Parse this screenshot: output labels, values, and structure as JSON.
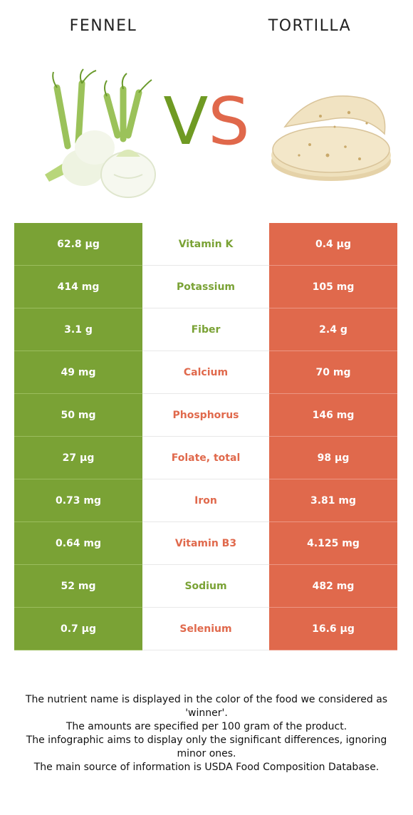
{
  "header": {
    "left_food": "FENNEL",
    "right_food": "TORTILLA",
    "vs_v": "V",
    "vs_s": "S"
  },
  "colors": {
    "left_winner": "#7aa235",
    "right_winner": "#e0694c"
  },
  "rows": [
    {
      "left": "62.8 µg",
      "nutrient": "Vitamin K",
      "right": "0.4 µg",
      "winner": "left"
    },
    {
      "left": "414 mg",
      "nutrient": "Potassium",
      "right": "105 mg",
      "winner": "left"
    },
    {
      "left": "3.1 g",
      "nutrient": "Fiber",
      "right": "2.4 g",
      "winner": "left"
    },
    {
      "left": "49 mg",
      "nutrient": "Calcium",
      "right": "70 mg",
      "winner": "right"
    },
    {
      "left": "50 mg",
      "nutrient": "Phosphorus",
      "right": "146 mg",
      "winner": "right"
    },
    {
      "left": "27 µg",
      "nutrient": "Folate, total",
      "right": "98 µg",
      "winner": "right"
    },
    {
      "left": "0.73 mg",
      "nutrient": "Iron",
      "right": "3.81 mg",
      "winner": "right"
    },
    {
      "left": "0.64 mg",
      "nutrient": "Vitamin B3",
      "right": "4.125 mg",
      "winner": "right"
    },
    {
      "left": "52 mg",
      "nutrient": "Sodium",
      "right": "482 mg",
      "winner": "left"
    },
    {
      "left": "0.7 µg",
      "nutrient": "Selenium",
      "right": "16.6 µg",
      "winner": "right"
    }
  ],
  "footnotes": [
    "The nutrient name is displayed in the color of the food we considered as 'winner'.",
    "The amounts are specified per 100 gram of the product.",
    "The infographic aims to display only the significant differences, ignoring minor ones.",
    "The main source of information is USDA Food Composition Database."
  ]
}
